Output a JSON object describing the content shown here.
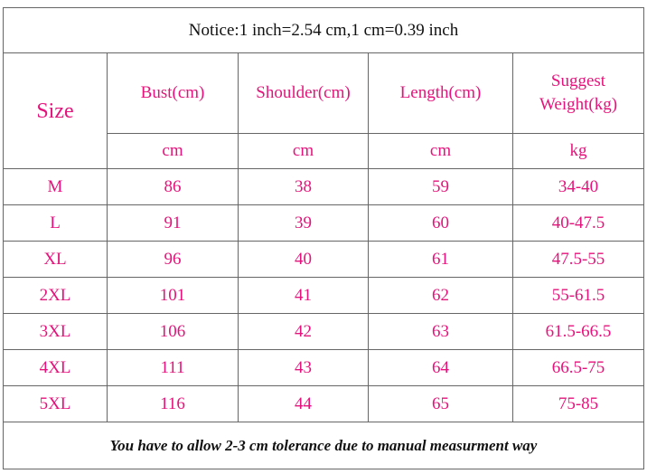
{
  "notice": "Notice:1 inch=2.54 cm,1 cm=0.39 inch",
  "header": {
    "size": "Size",
    "columns": [
      "Bust(cm)",
      "Shoulder(cm)",
      "Length(cm)",
      "Suggest Weight(kg)"
    ]
  },
  "units": [
    "cm",
    "cm",
    "cm",
    "kg"
  ],
  "rows": [
    [
      "M",
      86,
      38,
      59,
      "34-40"
    ],
    [
      "L",
      91,
      39,
      60,
      "40-47.5"
    ],
    [
      "XL",
      96,
      40,
      61,
      "47.5-55"
    ],
    [
      "2XL",
      101,
      41,
      62,
      "55-61.5"
    ],
    [
      "3XL",
      106,
      42,
      63,
      "61.5-66.5"
    ],
    [
      "4XL",
      111,
      43,
      64,
      "66.5-75"
    ],
    [
      "5XL",
      116,
      44,
      65,
      "75-85"
    ]
  ],
  "footer": "You have to allow 2-3 cm tolerance due to manual measurment way"
}
